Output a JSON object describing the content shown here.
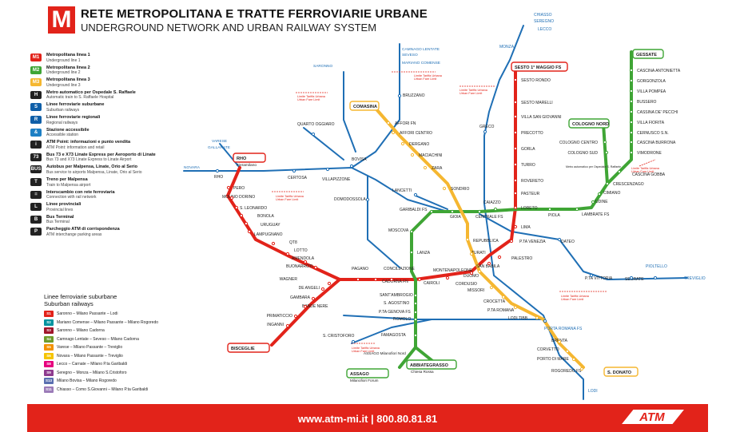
{
  "header": {
    "logo_letter": "M",
    "title_it": "RETE METROPOLITANA E TRATTE FERROVIARIE URBANE",
    "title_en": "UNDERGROUND NETWORK AND URBAN RAILWAY SYSTEM"
  },
  "legend": [
    {
      "badge": "M1",
      "color": "#e2231a",
      "it": "Metropolitana linea 1",
      "en": "Underground line 1"
    },
    {
      "badge": "M2",
      "color": "#3fa535",
      "it": "Metropolitana linea 2",
      "en": "Underground line 2"
    },
    {
      "badge": "M3",
      "color": "#f5b731",
      "it": "Metropolitana linea 3",
      "en": "Underground line 3"
    },
    {
      "badge": "H",
      "color": "#222222",
      "it": "Metro automatico per Ospedale S. Raffaele",
      "en": "Automatic train to S. Raffaele Hospital"
    },
    {
      "badge": "S",
      "color": "#0f5fa8",
      "it": "Linee ferroviarie suburbane",
      "en": "Suburban railways"
    },
    {
      "badge": "R",
      "color": "#0f5fa8",
      "it": "Linee ferroviarie regionali",
      "en": "Regional railways"
    },
    {
      "badge": "&",
      "color": "#1d7fc4",
      "it": "Stazione accessibile",
      "en": "Accessible station"
    },
    {
      "badge": "i",
      "color": "#222222",
      "it": "ATM Point: informazioni e punto vendita",
      "en": "ATM Point: information and retail"
    },
    {
      "badge": "73",
      "color": "#222222",
      "it": "Bus 73 e X73 Linate Express per Aeroporto di Linate",
      "en": "Bus 73 and X73 Linate Express to Linate Airport"
    },
    {
      "badge": "BUS",
      "color": "#222222",
      "it": "Autobus per Malpensa, Linate, Orio al Serio",
      "en": "Bus service to airports Malpensa, Linate, Orio al Serio"
    },
    {
      "badge": "T",
      "color": "#222222",
      "it": "Treno per Malpensa",
      "en": "Train to Malpensa airport"
    },
    {
      "badge": "=",
      "color": "#222222",
      "it": "Interscambio con rete ferroviaria",
      "en": "Connection with rail network"
    },
    {
      "badge": "L",
      "color": "#222222",
      "it": "Linee provinciali",
      "en": "Provincial lines"
    },
    {
      "badge": "B",
      "color": "#222222",
      "it": "Bus Terminal",
      "en": "Bus Terminal"
    },
    {
      "badge": "P",
      "color": "#222222",
      "it": "Parcheggio ATM di corrispondenza",
      "en": "ATM interchange parking areas"
    }
  ],
  "suburban": {
    "title_it": "Linee ferroviarie suburbane",
    "title_en": "Suburban railways",
    "lines": [
      {
        "code": "S1",
        "color": "#e2231a",
        "text": "Saronno – Milano Passante – Lodi"
      },
      {
        "code": "S2",
        "color": "#00939f",
        "text": "Mariano Comense – Milano Passante – Milano Rogoredo"
      },
      {
        "code": "S3",
        "color": "#a0162b",
        "text": "Saronno – Milano Cadorna"
      },
      {
        "code": "S4",
        "color": "#6e9c2c",
        "text": "Camnago Lentate – Seveso – Milano Cadorna"
      },
      {
        "code": "S5",
        "color": "#f29100",
        "text": "Varese – Milano Passante – Treviglio"
      },
      {
        "code": "S6",
        "color": "#f5c400",
        "text": "Novara – Milano Passante – Treviglio"
      },
      {
        "code": "S8",
        "color": "#e6007e",
        "text": "Lecco – Carnate – Milano P.ta Garibaldi"
      },
      {
        "code": "S9",
        "color": "#8e3b8f",
        "text": "Seregno – Monza – Milano S.Cristoforo"
      },
      {
        "code": "S13",
        "color": "#5a6fb0",
        "text": "Milano Bovisa – Milano Rogoredo"
      },
      {
        "code": "S11",
        "color": "#9b7bb8",
        "text": "Chiasso – Como S.Giovanni – Milano P.ta Garibaldi"
      }
    ]
  },
  "stations": {
    "m1": [
      "SESTO 1° MAGGIO FS",
      "SESTO RONDO",
      "SESTO MARELLI",
      "VILLA SAN GIOVANNI",
      "PRECOTTO",
      "GORLA",
      "TURRO",
      "ROVERETO",
      "PASTEUR",
      "LORETO",
      "LIMA",
      "P.TA VENEZIA",
      "PALESTRO",
      "SAN BABILA",
      "DUOMO",
      "CORDUSIO",
      "CAIROLI",
      "CADORNA FN",
      "CONCILIAZIONE",
      "PAGANO",
      "BUONARROTI",
      "AMENDOLA",
      "LOTTO",
      "QT8",
      "LAMPUGNANO",
      "URUGUAY",
      "BONOLA",
      "S. LEONARDO",
      "MOLINO DORINO",
      "PERO",
      "RHO Fieramilano",
      "WAGNER",
      "DE ANGELI",
      "GAMBARA",
      "BANDE NERE",
      "PRIMATICCIO",
      "INGANNI",
      "BISCEGLIE"
    ],
    "m2": [
      "GESSATE",
      "CASCINA ANTONIETTA",
      "GORGONZOLA",
      "VILLA POMPEA",
      "BUSSERO",
      "CASSINA DE' PECCHI",
      "VILLA FIORITA",
      "CERNUSCO S.N.",
      "CASCINA BURRONA",
      "VIMODRONE",
      "COLOGNO NORD",
      "COLOGNO CENTRO",
      "COLOGNO SUD",
      "CASCINA GOBBA",
      "CRESCENZAGO",
      "CIMIANO",
      "UDINE",
      "LAMBRATE FS",
      "PIOLA",
      "CAIAZZO",
      "CENTRALE FS",
      "GIOIA",
      "GARIBALDI FS",
      "MOSCOVA",
      "LANZA",
      "SANT'AMBROGIO",
      "S. AGOSTINO",
      "P.TA GENOVA FS",
      "ROMOLO",
      "FAMAGOSTA",
      "ASSAGO Milanofiori Nord",
      "ASSAGO Milanofiori Forum",
      "ABBIATEGRASSO Chiesa Rossa"
    ],
    "m3": [
      "COMASINA",
      "AFFORI FN",
      "AFFORI CENTRO",
      "DERGANO",
      "MACIACHINI",
      "ZARA",
      "SONDRIO",
      "REPUBBLICA",
      "TURATI",
      "MONTENAPOLEONE",
      "MISSORI",
      "CROCETTA",
      "P.TA ROMANA",
      "LODI TIBB",
      "BRENTA",
      "CORVETTO",
      "PORTO DI MARE",
      "ROGOREDO FS",
      "S. DONATO"
    ],
    "rail": [
      "CHIASSO",
      "SEREGNO",
      "LECCO",
      "MONZA",
      "CAMNAGO LENTATE SEVESO",
      "MARIANO COMENSE",
      "SARONNO",
      "BRUZZANO",
      "GRECO",
      "QUARTO OGGIARO",
      "BOVISA",
      "VARESE GALLARATE",
      "NOVARA",
      "RHO",
      "CERTOSA",
      "VILLAPIZZONE",
      "DOMODOSSOLA",
      "LANCETTI",
      "DATEO",
      "P.TA VITTORIA",
      "SEGRATE",
      "PIOLTELLO",
      "TREVIGLIO",
      "PORTA ROMANA FS",
      "S. CRISTOFORO",
      "LODI"
    ],
    "fare_limit": [
      "Limite Tariffa Urbana",
      "Urban Fare Limit"
    ],
    "linate_note": "Metro automatico per Ospedale S. Raffaele"
  },
  "footer": {
    "text": "www.atm-mi.it | 800.80.81.81",
    "brand": "ATM"
  },
  "colors": {
    "m1": "#e2231a",
    "m2": "#3fa535",
    "m3": "#f5b731",
    "rail": "#1f6fb5",
    "fs": "#e2231a"
  }
}
